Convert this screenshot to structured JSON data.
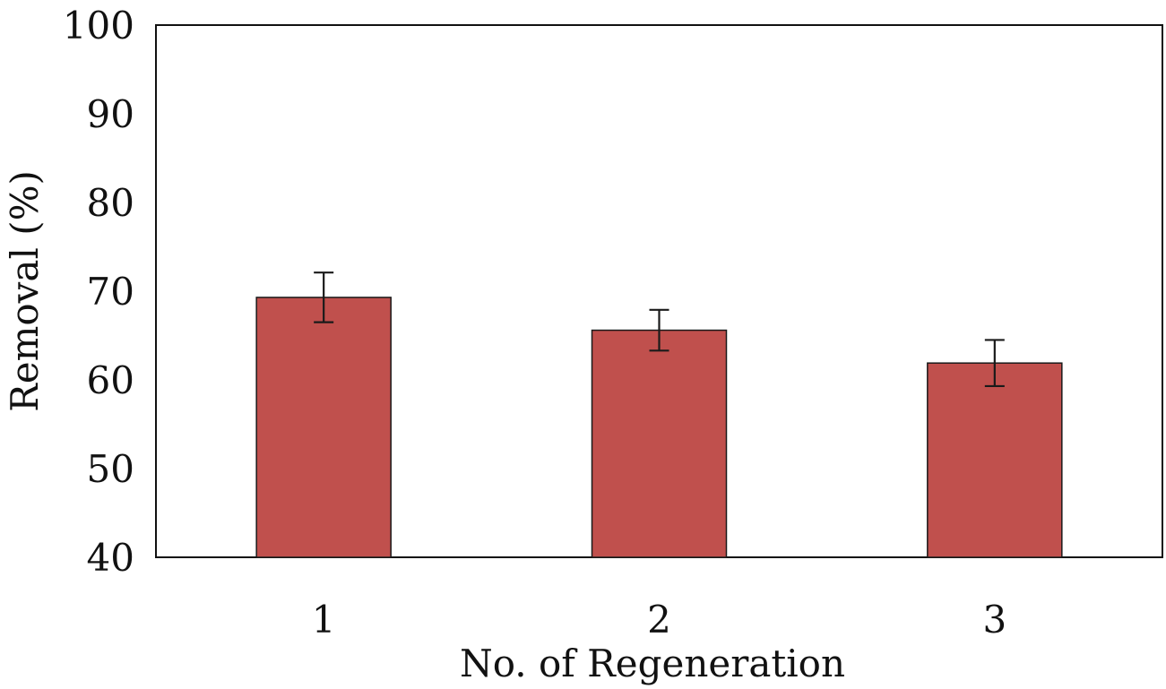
{
  "chart_data": {
    "type": "bar",
    "title": "",
    "xlabel": "No. of Regeneration",
    "ylabel": "Removal (%)",
    "categories": [
      "1",
      "2",
      "3"
    ],
    "values": [
      69.3,
      65.6,
      61.9
    ],
    "error": [
      2.8,
      2.3,
      2.6
    ],
    "ylim": [
      40,
      100
    ],
    "yticks": [
      40,
      50,
      60,
      70,
      80,
      90,
      100
    ],
    "grid": false,
    "legend": "none",
    "bar_color": "#c0504d"
  }
}
